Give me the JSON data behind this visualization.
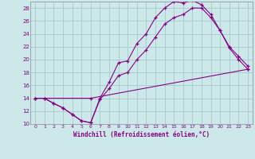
{
  "title": "",
  "xlabel": "Windchill (Refroidissement éolien,°C)",
  "ylabel": "",
  "background_color": "#cce8e8",
  "line_color": "#880088",
  "grid_color": "#aacfcf",
  "xlim": [
    -0.5,
    23.5
  ],
  "ylim": [
    10,
    29
  ],
  "yticks": [
    10,
    12,
    14,
    16,
    18,
    20,
    22,
    24,
    26,
    28
  ],
  "xticks": [
    0,
    1,
    2,
    3,
    4,
    5,
    6,
    7,
    8,
    9,
    10,
    11,
    12,
    13,
    14,
    15,
    16,
    17,
    18,
    19,
    20,
    21,
    22,
    23
  ],
  "line1_x": [
    0,
    1,
    2,
    3,
    4,
    5,
    6,
    7,
    8,
    9,
    10,
    11,
    12,
    13,
    14,
    15,
    16,
    17,
    18,
    19,
    20,
    21,
    22,
    23
  ],
  "line1_y": [
    14,
    14,
    13.2,
    12.5,
    11.5,
    10.5,
    10.2,
    14,
    16.5,
    19.5,
    19.8,
    22.5,
    24.0,
    26.5,
    28.0,
    29.0,
    28.8,
    29.2,
    28.5,
    27.0,
    24.5,
    22.0,
    20.5,
    19.0
  ],
  "line2_x": [
    0,
    1,
    2,
    3,
    4,
    5,
    6,
    7,
    8,
    9,
    10,
    11,
    12,
    13,
    14,
    15,
    16,
    17,
    18,
    19,
    20,
    21,
    22,
    23
  ],
  "line2_y": [
    14,
    14,
    13.2,
    12.5,
    11.5,
    10.5,
    10.2,
    13.8,
    15.5,
    17.5,
    18.0,
    20.0,
    21.5,
    23.5,
    25.5,
    26.5,
    27.0,
    28.0,
    28.0,
    26.5,
    24.5,
    21.8,
    20.0,
    18.5
  ],
  "line3_x": [
    0,
    6,
    23
  ],
  "line3_y": [
    14.0,
    14.0,
    18.5
  ],
  "marker": "+"
}
